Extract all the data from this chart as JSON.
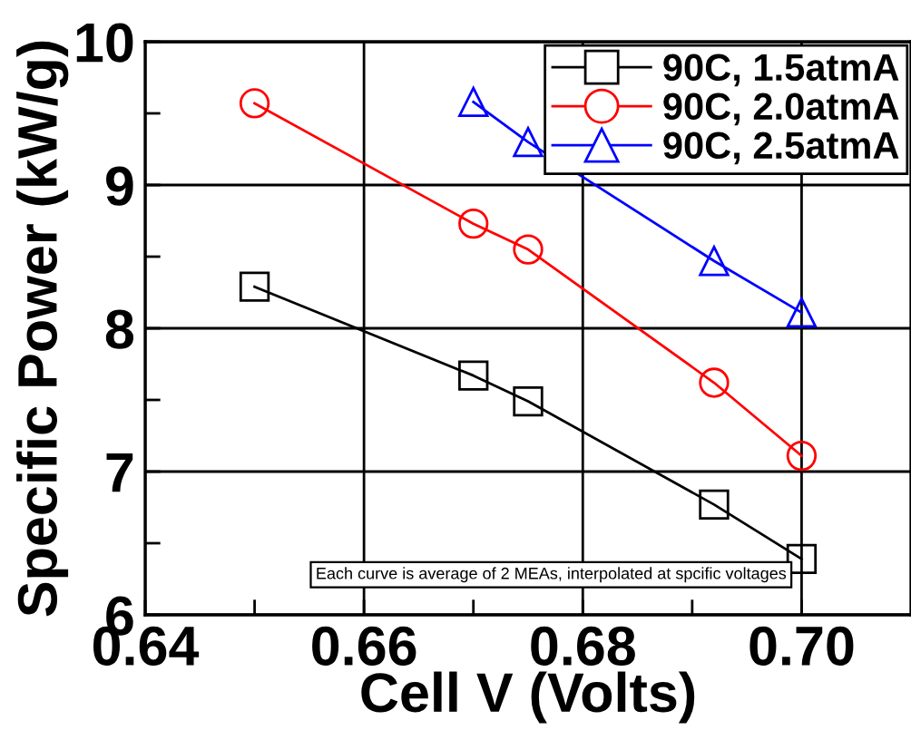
{
  "chart_data": {
    "type": "line",
    "xlabel": "Cell V (Volts)",
    "ylabel": "Specific Power (kW/g)",
    "x": [
      0.65,
      0.67,
      0.675,
      0.692,
      0.7
    ],
    "series": [
      {
        "name": "90C, 1.5atmA",
        "color": "#000000",
        "marker": "square",
        "values": [
          8.29,
          7.67,
          7.49,
          6.77,
          6.39
        ]
      },
      {
        "name": "90C, 2.0atmA",
        "color": "#ff0000",
        "marker": "circle",
        "values": [
          9.57,
          8.73,
          8.55,
          7.62,
          7.11
        ]
      },
      {
        "name": "90C, 2.5atmA",
        "color": "#0000ff",
        "marker": "triangle",
        "x": [
          0.67,
          0.675,
          0.692,
          0.7
        ],
        "values": [
          9.58,
          9.3,
          8.47,
          8.11
        ]
      }
    ],
    "xlim": [
      0.64,
      0.71
    ],
    "ylim": [
      6,
      10
    ],
    "xticks": [
      0.64,
      {
        "value": 0.65,
        "label": null
      },
      0.66,
      {
        "value": 0.67,
        "label": null
      },
      0.68,
      {
        "value": 0.69,
        "label": null
      },
      "0.70"
    ],
    "yticks": [
      6,
      {
        "value": 6.5,
        "label": null
      },
      7,
      {
        "value": 7.5,
        "label": null
      },
      8,
      {
        "value": 8.5,
        "label": null
      },
      9,
      {
        "value": 9.5,
        "label": null
      },
      10
    ],
    "grid": true,
    "legend": "top right",
    "line_style": "solid",
    "annotations": [
      "Each curve is average of 2 MEAs, interpolated at spcific voltages"
    ]
  }
}
